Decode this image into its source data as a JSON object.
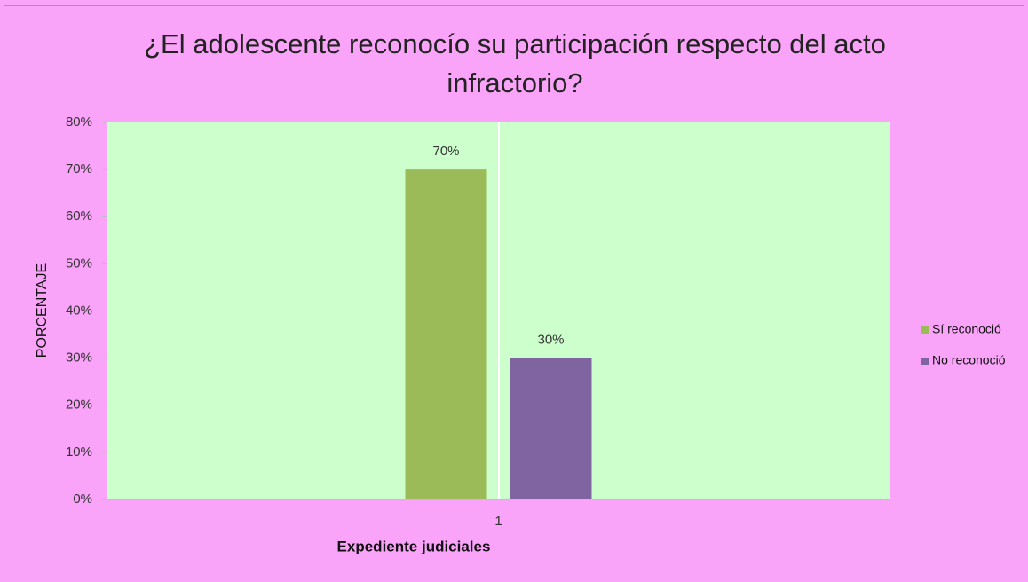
{
  "chart_data": {
    "type": "bar",
    "title": "¿El adolescente reconocío su participación respecto del acto infractorio?",
    "xlabel": "Expediente judiciales",
    "ylabel": "PORCENTAJE",
    "categories": [
      "1"
    ],
    "series": [
      {
        "name": "Sí reconoció",
        "color": "#9bbb59",
        "values": [
          70
        ],
        "value_labels": [
          "70%"
        ]
      },
      {
        "name": "No reconoció",
        "color": "#8064a2",
        "values": [
          30
        ],
        "value_labels": [
          "30%"
        ]
      }
    ],
    "ylim": [
      0,
      80
    ],
    "yticks": [
      {
        "value": 0,
        "label": "0%"
      },
      {
        "value": 10,
        "label": "10%"
      },
      {
        "value": 20,
        "label": "20%"
      },
      {
        "value": 30,
        "label": "30%"
      },
      {
        "value": 40,
        "label": "40%"
      },
      {
        "value": 50,
        "label": "50%"
      },
      {
        "value": 60,
        "label": "60%"
      },
      {
        "value": 70,
        "label": "70%"
      },
      {
        "value": 80,
        "label": "80%"
      }
    ],
    "legend": "right"
  }
}
